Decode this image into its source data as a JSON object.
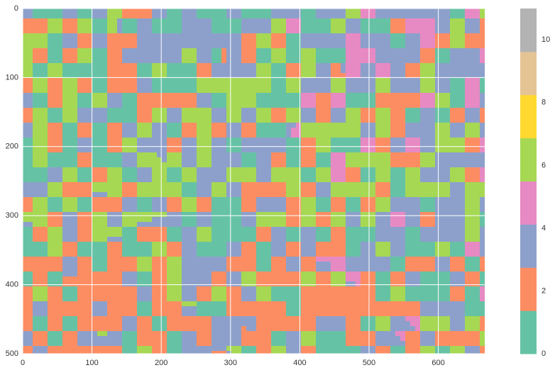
{
  "chart_data": {
    "type": "image",
    "xlim": [
      0,
      667
    ],
    "ylim": [
      500,
      0
    ],
    "xticks": [
      0,
      100,
      200,
      300,
      400,
      500,
      600
    ],
    "yticks": [
      0,
      100,
      200,
      300,
      400,
      500
    ],
    "grid": true,
    "colorbar": {
      "lim": [
        0,
        11
      ],
      "ticks": [
        0,
        2,
        4,
        6,
        8,
        10
      ],
      "colors": [
        "#66c2a5",
        "#fc8d62",
        "#8da0cb",
        "#e78ac3",
        "#a6d854",
        "#ffd92f",
        "#e5c494",
        "#b3b3b3"
      ]
    }
  }
}
